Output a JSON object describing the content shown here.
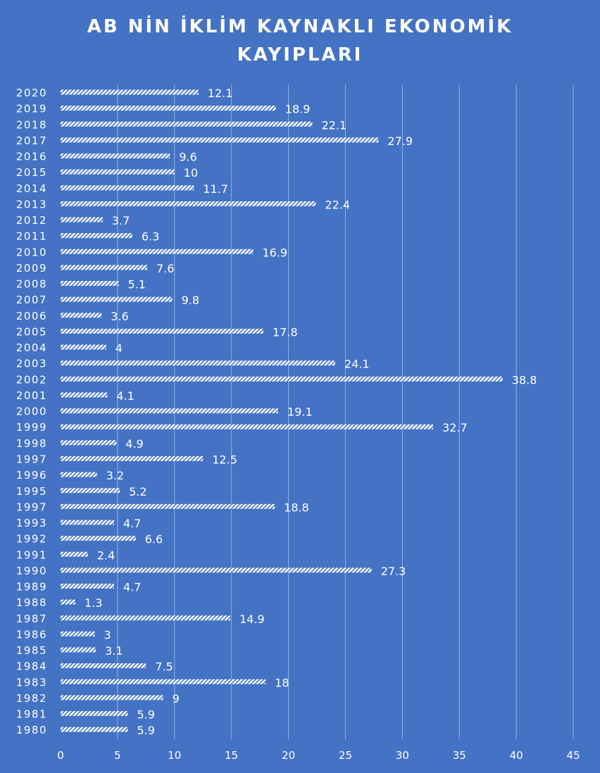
{
  "chart_data": {
    "type": "bar",
    "orientation": "horizontal",
    "title_line1": "AB NİN İKLİM KAYNAKLI EKONOMİK",
    "title_line2": "KAYIPLARI",
    "xlabel": "",
    "ylabel": "",
    "xlim": [
      0,
      45
    ],
    "x_ticks": [
      0,
      5,
      10,
      15,
      20,
      25,
      30,
      35,
      40,
      45
    ],
    "grid": "vertical",
    "legend": "none",
    "bar_color": "#ffffff",
    "bar_pattern": "diagonal-hatch",
    "background_color": "#4472C4",
    "categories": [
      "2020",
      "2019",
      "2018",
      "2017",
      "2016",
      "2015",
      "2014",
      "2013",
      "2012",
      "2011",
      "2010",
      "2009",
      "2008",
      "2007",
      "2006",
      "2005",
      "2004",
      "2003",
      "2002",
      "2001",
      "2000",
      "1999",
      "1998",
      "1997",
      "1996",
      "1995",
      "1997",
      "1993",
      "1992",
      "1991",
      "1990",
      "1989",
      "1988",
      "1987",
      "1986",
      "1985",
      "1984",
      "1983",
      "1982",
      "1981",
      "1980"
    ],
    "values": [
      12.1,
      18.9,
      22.1,
      27.9,
      9.6,
      10,
      11.7,
      22.4,
      3.7,
      6.3,
      16.9,
      7.6,
      5.1,
      9.8,
      3.6,
      17.8,
      4,
      24.1,
      38.8,
      4.1,
      19.1,
      32.7,
      4.9,
      12.5,
      3.2,
      5.2,
      18.8,
      4.7,
      6.6,
      2.4,
      27.3,
      4.7,
      1.3,
      14.9,
      3,
      3.1,
      7.5,
      18,
      9,
      5.9,
      5.9
    ]
  }
}
